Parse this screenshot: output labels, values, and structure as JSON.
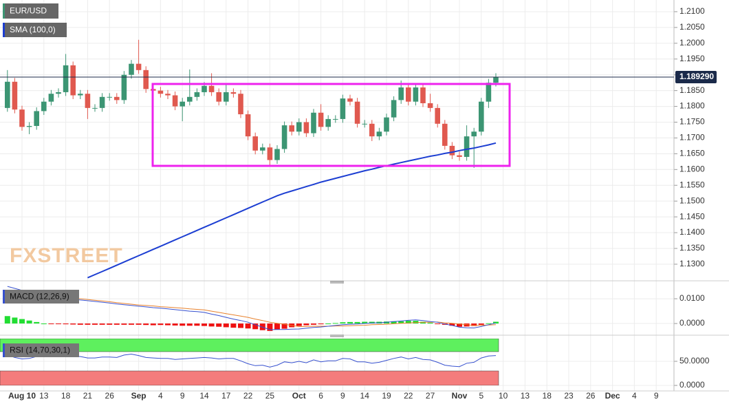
{
  "watermark": "FXSTREET",
  "chart_data": [
    {
      "type": "candlestick",
      "name": "EUR/USD",
      "categories": [
        null,
        null,
        "Aug 10",
        null,
        null,
        "13",
        null,
        null,
        "18",
        null,
        null,
        "21",
        null,
        null,
        "26",
        null,
        null,
        null,
        "Sep",
        null,
        null,
        "4",
        null,
        null,
        "9",
        null,
        null,
        "14",
        null,
        null,
        "17",
        null,
        null,
        "22",
        null,
        null,
        "25",
        null,
        null,
        null,
        "Oct",
        null,
        null,
        "6",
        null,
        null,
        "9",
        null,
        null,
        "14",
        null,
        null,
        "19",
        null,
        null,
        "22",
        null,
        null,
        "27",
        null,
        null,
        null,
        "Nov",
        null,
        null,
        "5",
        null,
        null,
        "10",
        null,
        null,
        "13",
        null,
        null,
        "18",
        null,
        null,
        "23",
        null,
        null,
        "26",
        null,
        null,
        "Dec",
        null,
        null,
        "4",
        null,
        null,
        "9"
      ],
      "open": [
        1.1795,
        1.1878,
        1.179,
        1.1735,
        1.1738,
        1.1785,
        1.1815,
        1.184,
        1.1845,
        1.193,
        1.1835,
        1.184,
        1.1795,
        1.1795,
        1.183,
        1.183,
        1.182,
        1.19,
        1.1935,
        1.1915,
        1.1855,
        1.185,
        1.184,
        1.1835,
        1.18,
        1.1815,
        1.183,
        1.1845,
        1.1865,
        1.1845,
        1.1815,
        1.1845,
        1.184,
        1.1775,
        1.1705,
        1.166,
        1.167,
        1.163,
        1.1665,
        1.174,
        1.172,
        1.175,
        1.1715,
        1.178,
        1.1735,
        1.176,
        1.176,
        1.1825,
        1.1815,
        1.1745,
        1.1745,
        1.1705,
        1.172,
        1.1765,
        1.182,
        1.186,
        1.1815,
        1.186,
        1.181,
        1.1795,
        1.1745,
        1.1675,
        1.1645,
        1.164,
        1.1705,
        1.172,
        1.1815,
        1.1875,
        null,
        null,
        null,
        null,
        null,
        null,
        null,
        null,
        null,
        null,
        null,
        null,
        null,
        null,
        null,
        null,
        null,
        null,
        null,
        null,
        null,
        null
      ],
      "high": [
        1.1915,
        1.189,
        1.1802,
        1.175,
        1.1797,
        1.1827,
        1.1852,
        1.1857,
        1.1966,
        1.1942,
        1.1852,
        1.1852,
        1.1807,
        1.1842,
        1.1842,
        1.1842,
        1.1912,
        1.1947,
        1.2011,
        1.1927,
        1.1867,
        1.1862,
        1.1852,
        1.1847,
        1.1827,
        1.1917,
        1.1857,
        1.1877,
        1.1905,
        1.1857,
        1.1872,
        1.1857,
        1.1852,
        1.1787,
        1.1717,
        1.1682,
        1.1682,
        1.1677,
        1.1752,
        1.1752,
        1.1762,
        1.1762,
        1.1792,
        1.1807,
        1.1772,
        1.1772,
        1.1837,
        1.1837,
        1.1827,
        1.1757,
        1.1757,
        1.1732,
        1.1777,
        1.1832,
        1.1882,
        1.1872,
        1.1872,
        1.1872,
        1.184,
        1.1807,
        1.1757,
        1.1687,
        1.1657,
        1.174,
        1.1732,
        1.1827,
        1.1887,
        1.1905,
        null,
        null,
        null,
        null,
        null,
        null,
        null,
        null,
        null,
        null,
        null,
        null,
        null,
        null,
        null,
        null,
        null,
        null,
        null,
        null,
        null,
        null
      ],
      "low": [
        1.1783,
        1.1778,
        1.1723,
        1.1712,
        1.1726,
        1.1773,
        1.1803,
        1.1828,
        1.1833,
        1.1823,
        1.1823,
        1.176,
        1.1783,
        1.1783,
        1.1818,
        1.1808,
        1.1808,
        1.1888,
        1.1903,
        1.1843,
        1.1825,
        1.1828,
        1.1823,
        1.1788,
        1.1753,
        1.1803,
        1.1818,
        1.1833,
        1.1833,
        1.1803,
        1.1803,
        1.1828,
        1.1763,
        1.1693,
        1.1648,
        1.1648,
        1.1612,
        1.1618,
        1.1653,
        1.1708,
        1.1708,
        1.1703,
        1.1703,
        1.1723,
        1.1723,
        1.1748,
        1.1748,
        1.1803,
        1.1733,
        1.1733,
        1.169,
        1.1693,
        1.1708,
        1.1753,
        1.1808,
        1.1803,
        1.1803,
        1.1798,
        1.1783,
        1.1733,
        1.1663,
        1.1633,
        1.1628,
        1.1628,
        1.1605,
        1.1708,
        1.1795,
        1.1863,
        null,
        null,
        null,
        null,
        null,
        null,
        null,
        null,
        null,
        null,
        null,
        null,
        null,
        null,
        null,
        null,
        null,
        null,
        null,
        null,
        null,
        null
      ],
      "close": [
        1.1878,
        1.179,
        1.1735,
        1.1738,
        1.1785,
        1.1815,
        1.184,
        1.1845,
        1.193,
        1.1835,
        1.184,
        1.1795,
        1.1795,
        1.183,
        1.183,
        1.182,
        1.19,
        1.1935,
        1.1915,
        1.1855,
        1.185,
        1.184,
        1.1835,
        1.18,
        1.1815,
        1.183,
        1.1845,
        1.1865,
        1.1845,
        1.1815,
        1.1845,
        1.184,
        1.1775,
        1.1705,
        1.166,
        1.167,
        1.163,
        1.1665,
        1.174,
        1.172,
        1.175,
        1.1715,
        1.178,
        1.1735,
        1.176,
        1.176,
        1.1825,
        1.1815,
        1.1745,
        1.1745,
        1.1705,
        1.172,
        1.1765,
        1.182,
        1.186,
        1.1815,
        1.186,
        1.181,
        1.1795,
        1.1745,
        1.1675,
        1.1645,
        1.164,
        1.1705,
        1.172,
        1.1815,
        1.1875,
        1.1893,
        null,
        null,
        null,
        null,
        null,
        null,
        null,
        null,
        null,
        null,
        null,
        null,
        null,
        null,
        null,
        null,
        null,
        null,
        null,
        null,
        null,
        null
      ],
      "up_color": "#3c9573",
      "down_color": "#e0594f",
      "series": [
        {
          "name": "SMA (100,0)",
          "color": "#1c3ed2",
          "values": [
            null,
            null,
            null,
            null,
            null,
            null,
            null,
            null,
            null,
            null,
            null,
            1.1257,
            1.1267,
            1.1277,
            1.1287,
            1.1297,
            1.1307,
            1.1317,
            1.1327,
            1.1337,
            1.1347,
            1.1357,
            1.1367,
            1.1377,
            1.1387,
            1.1397,
            1.1407,
            1.1417,
            1.1427,
            1.1437,
            1.1447,
            1.1457,
            1.1467,
            1.1477,
            1.1487,
            1.1497,
            1.1507,
            1.1517,
            1.1525,
            1.1532,
            1.1539,
            1.1546,
            1.1553,
            1.156,
            1.1566,
            1.1572,
            1.1578,
            1.1584,
            1.159,
            1.1596,
            1.1601,
            1.1607,
            1.1612,
            1.1617,
            1.1622,
            1.1627,
            1.1632,
            1.1637,
            1.1642,
            1.1646,
            1.1651,
            1.1655,
            1.166,
            1.1664,
            1.1668,
            1.1673,
            1.1678,
            1.1684,
            null,
            null,
            null,
            null,
            null,
            null,
            null,
            null,
            null,
            null,
            null,
            null,
            null,
            null,
            null,
            null,
            null,
            null,
            null,
            null,
            null,
            null
          ]
        }
      ],
      "ylim": [
        1.1254,
        1.2137
      ],
      "yticks": [
        {
          "value": 1.21,
          "label": "1.2100"
        },
        {
          "value": 1.205,
          "label": "1.2050"
        },
        {
          "value": 1.2,
          "label": "1.2000"
        },
        {
          "value": 1.195,
          "label": "1.1950"
        },
        {
          "value": 1.19,
          "label": "1.1900"
        },
        {
          "value": 1.185,
          "label": "1.1850"
        },
        {
          "value": 1.18,
          "label": "1.1800"
        },
        {
          "value": 1.175,
          "label": "1.1750"
        },
        {
          "value": 1.17,
          "label": "1.1700"
        },
        {
          "value": 1.165,
          "label": "1.1650"
        },
        {
          "value": 1.16,
          "label": "1.1600"
        },
        {
          "value": 1.155,
          "label": "1.1550"
        },
        {
          "value": 1.15,
          "label": "1.1500"
        },
        {
          "value": 1.145,
          "label": "1.1450"
        },
        {
          "value": 1.14,
          "label": "1.1400"
        },
        {
          "value": 1.135,
          "label": "1.1350"
        },
        {
          "value": 1.13,
          "label": "1.1300"
        }
      ],
      "last_price": {
        "value": 1.18929,
        "label": "1.189290"
      },
      "grid": true
    },
    {
      "type": "macd",
      "name": "MACD (12,26,9)",
      "macd": {
        "color": "#3650cf",
        "values": [
          0.015,
          0.0142,
          0.0134,
          0.0126,
          0.0118,
          0.011,
          0.0107,
          0.0104,
          0.0101,
          0.0098,
          0.0095,
          0.0092,
          0.0089,
          0.0086,
          0.0083,
          0.0079,
          0.0076,
          0.0073,
          0.007,
          0.0067,
          0.0064,
          0.0062,
          0.0059,
          0.0056,
          0.0053,
          0.005,
          0.0048,
          0.0045,
          0.0038,
          0.0032,
          0.0025,
          0.0018,
          0.0012,
          0.0005,
          -0.0005,
          -0.0015,
          -0.0025,
          -0.0024,
          -0.0024,
          -0.0023,
          -0.0022,
          -0.0019,
          -0.0016,
          -0.0014,
          -0.0011,
          -0.0008,
          -0.0005,
          -0.0003,
          -0.0002,
          0,
          0.0002,
          0.0003,
          0.0005,
          0.0008,
          0.001,
          0.0013,
          0.0015,
          0.0012,
          0.0008,
          0.0005,
          -0.0002,
          -0.0008,
          -0.0015,
          -0.0017,
          -0.0018,
          -0.0012,
          -0.0005,
          0.0002,
          null,
          null,
          null,
          null,
          null,
          null,
          null,
          null,
          null,
          null,
          null,
          null,
          null,
          null,
          null,
          null,
          null,
          null,
          null,
          null,
          null,
          null
        ]
      },
      "signal": {
        "color": "#e8812c",
        "values": [
          0.012,
          0.0118,
          0.0116,
          0.0114,
          0.0112,
          0.011,
          0.0108,
          0.0106,
          0.0104,
          0.0102,
          0.01,
          0.0097,
          0.0094,
          0.0091,
          0.0088,
          0.0084,
          0.0081,
          0.0078,
          0.0075,
          0.0073,
          0.0071,
          0.0068,
          0.0066,
          0.0064,
          0.0062,
          0.0059,
          0.0057,
          0.0055,
          0.005,
          0.0045,
          0.004,
          0.0035,
          0.003,
          0.0025,
          0.0018,
          0.0012,
          0.0005,
          0.0001,
          -0.0003,
          -0.0008,
          -0.0012,
          -0.0012,
          -0.0011,
          -0.0011,
          -0.0011,
          -0.001,
          -0.001,
          -0.0009,
          -0.0008,
          -0.0007,
          -0.0005,
          -0.0004,
          -0.0003,
          -0.0001,
          0.0001,
          0.0002,
          0.0004,
          0.0005,
          0.0005,
          0.0006,
          0.0003,
          0.0001,
          -0.0002,
          -0.0005,
          -0.0008,
          -0.0007,
          -0.0006,
          -0.0005,
          null,
          null,
          null,
          null,
          null,
          null,
          null,
          null,
          null,
          null,
          null,
          null,
          null,
          null,
          null,
          null,
          null,
          null,
          null,
          null,
          null,
          null
        ]
      },
      "histogram": {
        "up_color": "#22dd33",
        "down_color": "#ee1111",
        "values": [
          0.003,
          0.0024,
          0.0018,
          0.0012,
          0.0006,
          0,
          -0.0001,
          -0.0002,
          -0.0003,
          -0.0004,
          -0.0005,
          -0.0005,
          -0.0005,
          -0.0005,
          -0.0005,
          -0.0005,
          -0.0005,
          -0.0005,
          -0.0005,
          -0.0006,
          -0.0007,
          -0.0006,
          -0.0007,
          -0.0008,
          -0.0009,
          -0.0009,
          -0.0009,
          -0.001,
          -0.0012,
          -0.0013,
          -0.0015,
          -0.0017,
          -0.0018,
          -0.002,
          -0.0023,
          -0.0027,
          -0.003,
          -0.0025,
          -0.0021,
          -0.0015,
          -0.001,
          -0.0007,
          -0.0005,
          -0.0003,
          0,
          0.0002,
          0.0005,
          0.0006,
          0.0006,
          0.0007,
          0.0007,
          0.0007,
          0.0008,
          0.0009,
          0.0009,
          0.0011,
          0.0011,
          0.0007,
          0.0003,
          -0.0001,
          -0.0005,
          -0.0009,
          -0.0013,
          -0.0012,
          -0.001,
          -0.0005,
          0.0001,
          0.0007,
          null,
          null,
          null,
          null,
          null,
          null,
          null,
          null,
          null,
          null,
          null,
          null,
          null,
          null,
          null,
          null,
          null,
          null,
          null,
          null,
          null,
          null
        ]
      },
      "ylim": [
        -0.0036,
        0.0153
      ],
      "yticks": [
        {
          "value": 0.01,
          "label": "0.0100"
        },
        {
          "value": 0,
          "label": "0.0000"
        }
      ]
    },
    {
      "type": "rsi",
      "name": "RSI (14,70,30,1)",
      "color": "#3650cf",
      "overbought": 70,
      "oversold": 30,
      "overbought_color": "#5ef05e",
      "oversold_color": "#f47c7c",
      "values": [
        63,
        58,
        55,
        56,
        60,
        62,
        64,
        64,
        66,
        60,
        60,
        57,
        57,
        59,
        59,
        58,
        63,
        65,
        62,
        58,
        57,
        56,
        56,
        54,
        55,
        56,
        57,
        58,
        57,
        55,
        56,
        56,
        51,
        45,
        41,
        42,
        38,
        42,
        49,
        47,
        50,
        47,
        53,
        49,
        51,
        51,
        56,
        55,
        49,
        49,
        46,
        48,
        52,
        56,
        59,
        55,
        58,
        54,
        53,
        48,
        42,
        40,
        39,
        46,
        48,
        57,
        61,
        62,
        null,
        null,
        null,
        null,
        null,
        null,
        null,
        null,
        null,
        null,
        null,
        null,
        null,
        null,
        null,
        null,
        null,
        null,
        null,
        null,
        null,
        null
      ],
      "ylim": [
        0,
        97.1
      ],
      "yticks": [
        {
          "value": 50,
          "label": "50.0000"
        },
        {
          "value": 0,
          "label": "0.0000"
        }
      ]
    }
  ]
}
